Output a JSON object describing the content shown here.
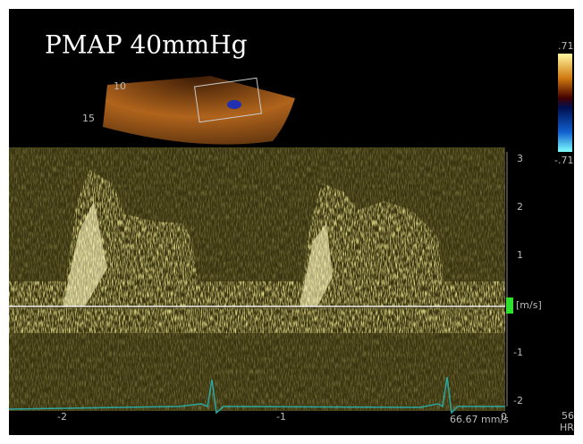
{
  "header": {
    "title": "PMAP 40mmHg"
  },
  "sector": {
    "depth_labels": [
      "10",
      "15"
    ]
  },
  "color_scale": {
    "max": ".71",
    "min": "-.71"
  },
  "velocity_axis": {
    "ticks": [
      "3",
      "2",
      "1",
      "-1",
      "-2"
    ],
    "unit": "[m/s]"
  },
  "time_axis": {
    "ticks": [
      "-2",
      "-1",
      "0"
    ]
  },
  "sweep_speed": "66.67 mm/s",
  "heart_rate": {
    "value": "56",
    "label": "HR"
  }
}
